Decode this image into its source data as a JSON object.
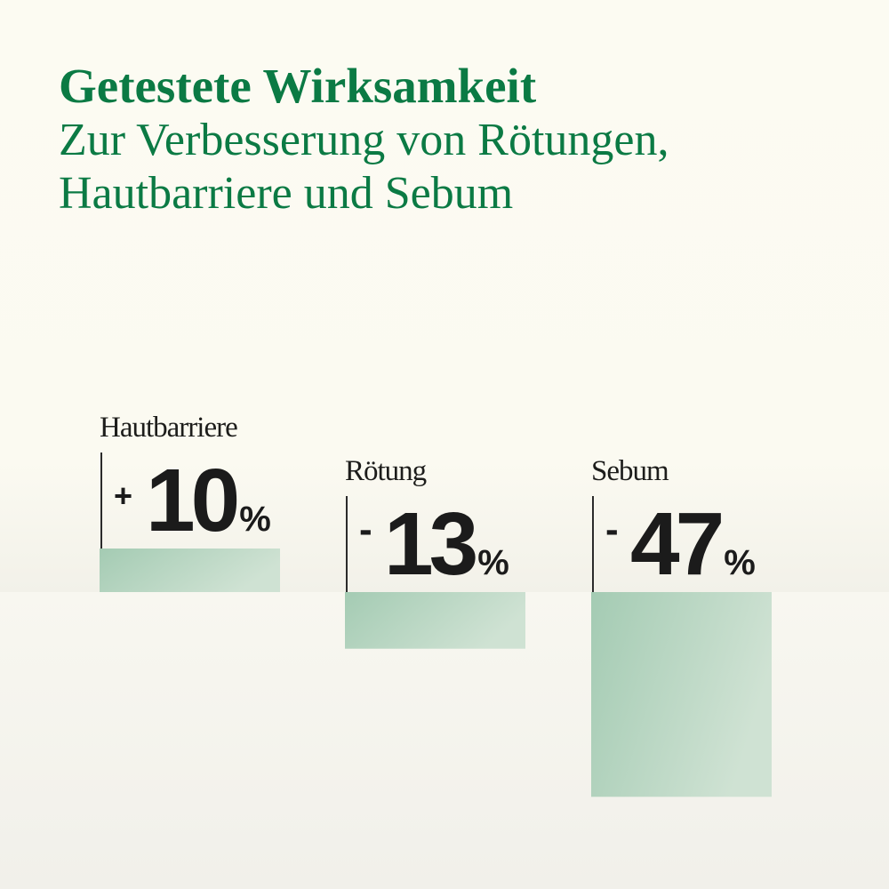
{
  "header": {
    "title": "Getestete Wirksamkeit",
    "subtitle_line1": "Zur Verbesserung von Rötungen,",
    "subtitle_line2": "Hautbarriere und Sebum"
  },
  "colors": {
    "title": "#0b7a44",
    "bar_light": "#cfe2d3",
    "bar_dark": "#a4cbb3",
    "text": "#1b1b1b"
  },
  "chart_data": {
    "type": "bar",
    "title": "Getestete Wirksamkeit",
    "subtitle": "Zur Verbesserung von Rötungen, Hautbarriere und Sebum",
    "categories": [
      "Hautbarriere",
      "Rötung",
      "Sebum"
    ],
    "values": [
      10,
      -13,
      -47
    ],
    "value_labels": [
      {
        "sign": "+",
        "number": "10",
        "unit": "%"
      },
      {
        "sign": "-",
        "number": "13",
        "unit": "%"
      },
      {
        "sign": "-",
        "number": "47",
        "unit": "%"
      }
    ],
    "baseline": 0,
    "xlabel": "",
    "ylabel": "",
    "grid": false,
    "legend": "none"
  }
}
